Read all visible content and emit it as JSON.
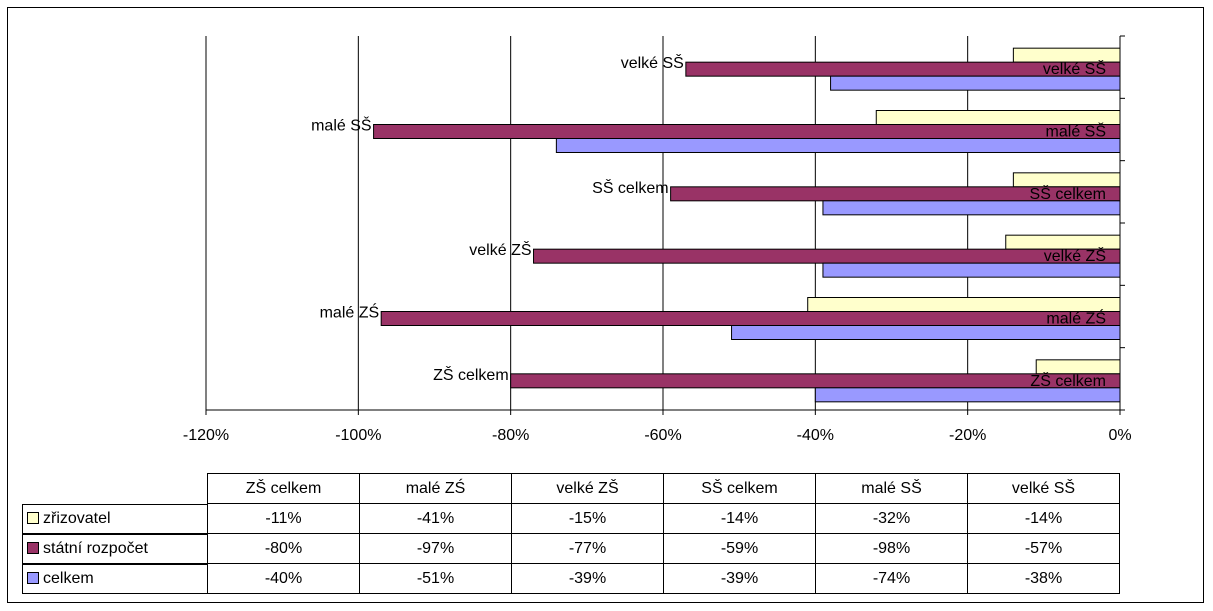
{
  "chart_data": {
    "type": "bar",
    "orientation": "horizontal",
    "categories": [
      "ZŠ celkem",
      "malé ZŚ",
      "velké ZŠ",
      "SŠ celkem",
      "malé SŠ",
      "velké SŠ"
    ],
    "series": [
      {
        "name": "zřizovatel",
        "color": "#FFFFCC",
        "values": [
          -11,
          -41,
          -15,
          -14,
          -32,
          -14
        ],
        "display": [
          "-11%",
          "-41%",
          "-15%",
          "-14%",
          "-32%",
          "-14%"
        ]
      },
      {
        "name": "státní rozpočet",
        "color": "#993366",
        "values": [
          -80,
          -97,
          -77,
          -59,
          -98,
          -57
        ],
        "display": [
          "-80%",
          "-97%",
          "-77%",
          "-59%",
          "-98%",
          "-57%"
        ]
      },
      {
        "name": "celkem",
        "color": "#9999FF",
        "values": [
          -40,
          -51,
          -39,
          -39,
          -74,
          -38
        ],
        "display": [
          "-40%",
          "-51%",
          "-39%",
          "-39%",
          "-74%",
          "-38%"
        ]
      }
    ],
    "xlim": [
      -120,
      0
    ],
    "xticks": [
      "-120%",
      "-100%",
      "-80%",
      "-60%",
      "-40%",
      "-20%",
      "0%"
    ],
    "grid": true,
    "legend": "data-table-bottom",
    "title": "",
    "xlabel": "",
    "ylabel": ""
  }
}
